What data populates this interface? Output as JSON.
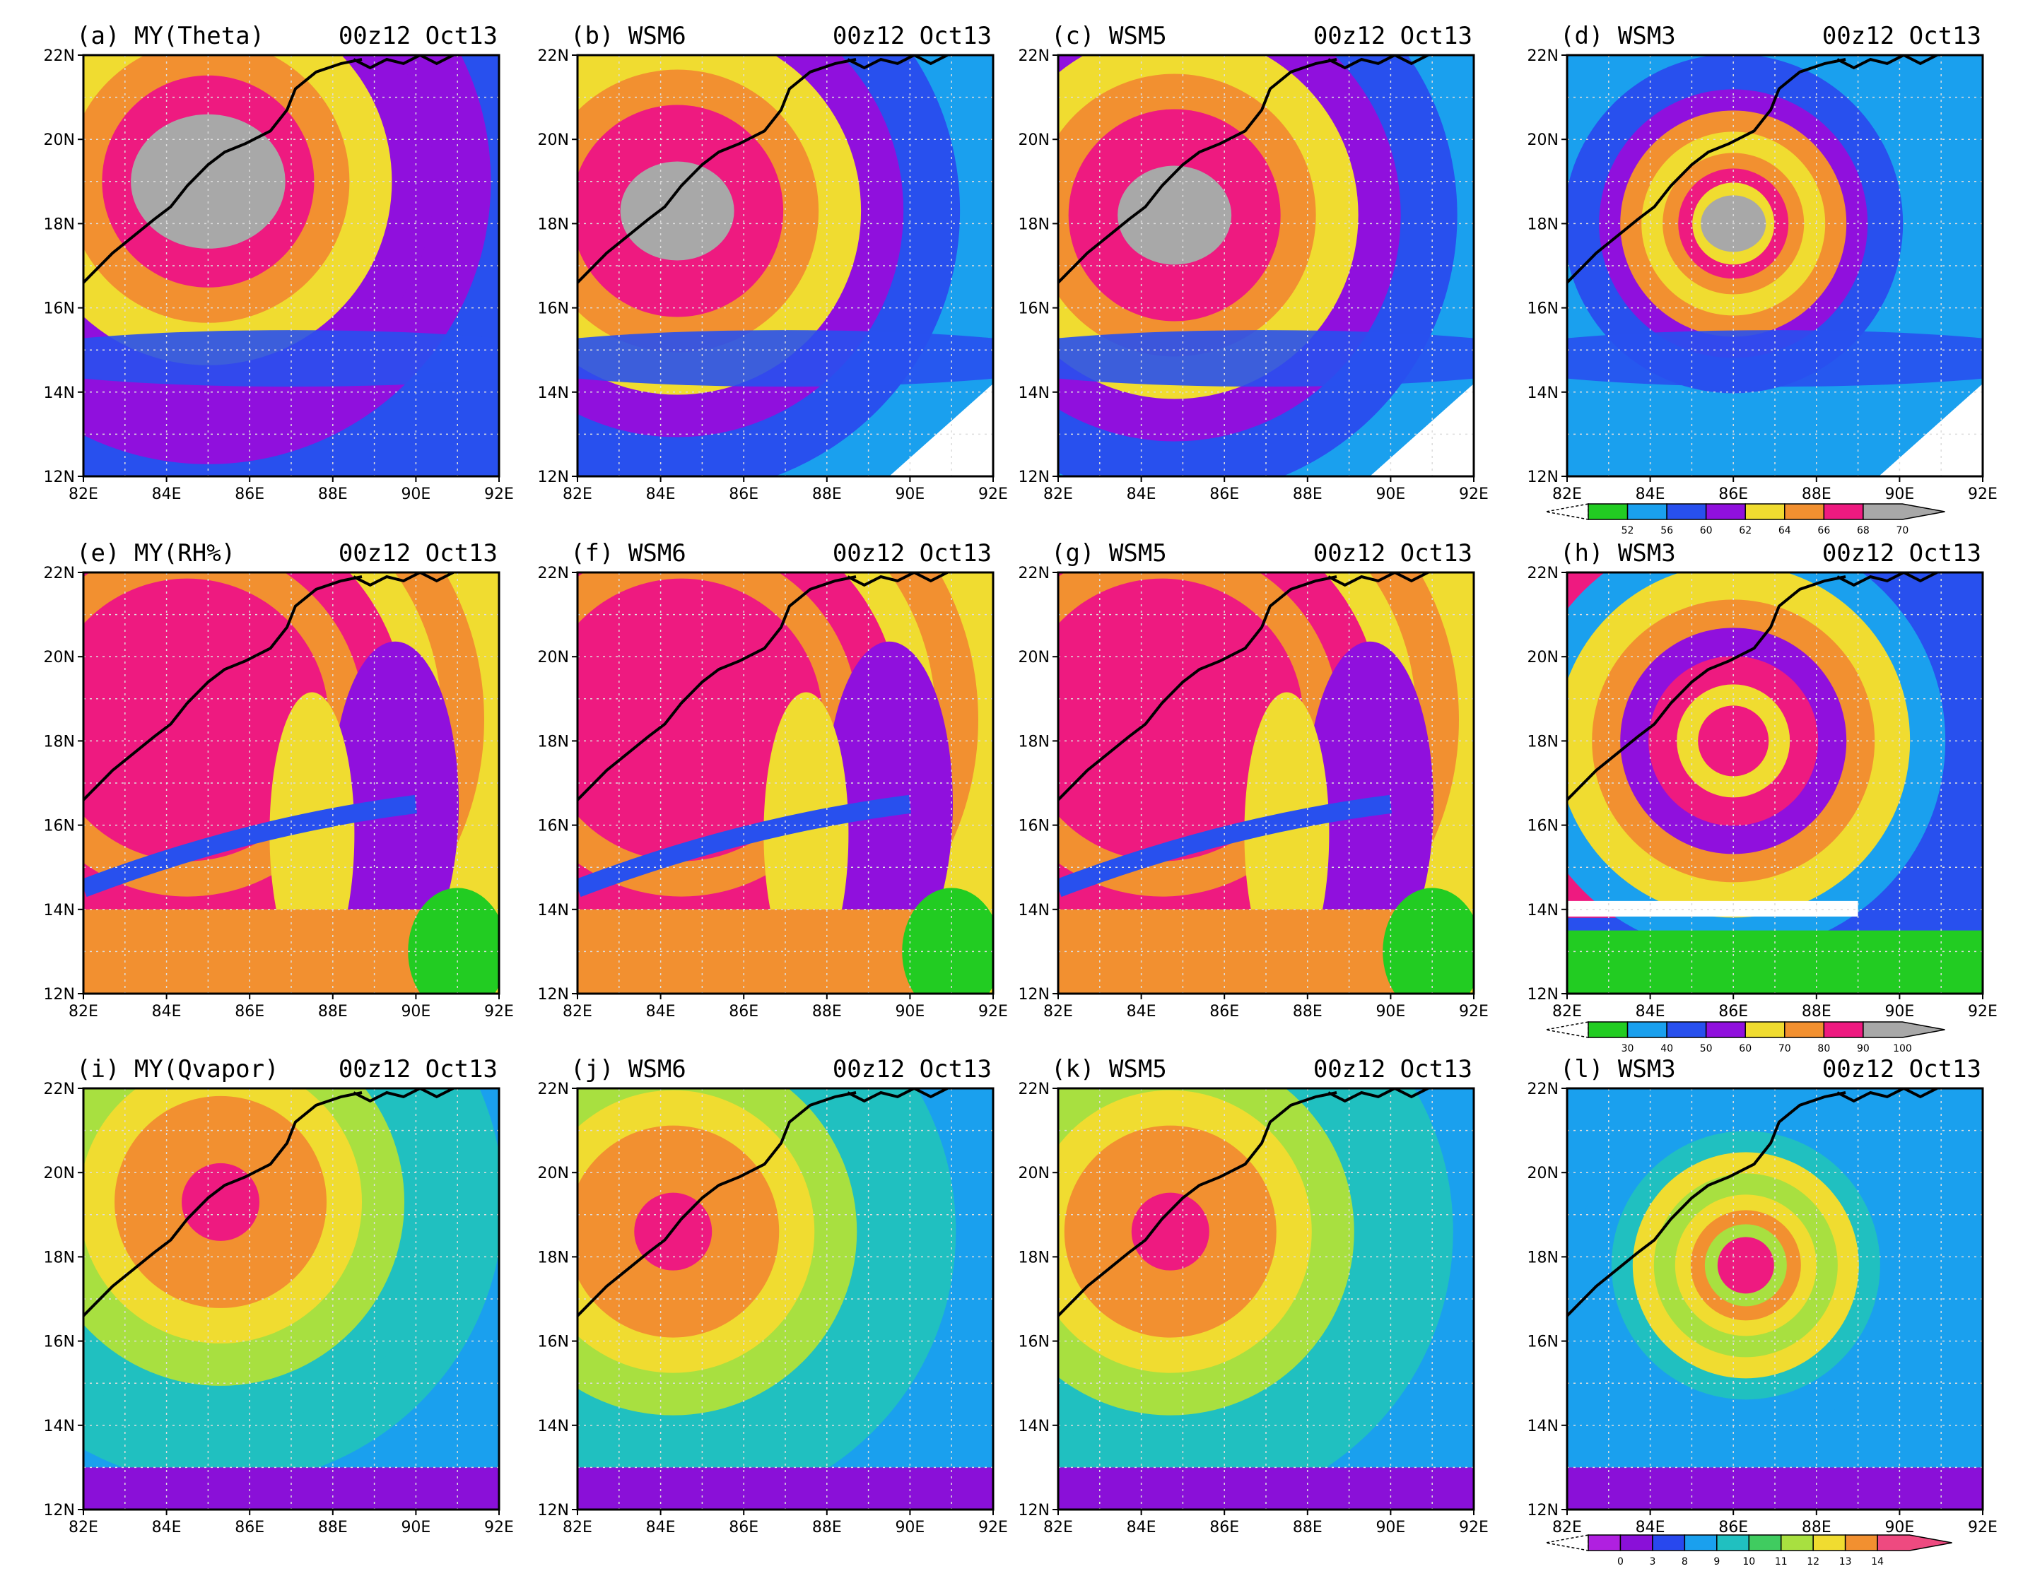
{
  "figure": {
    "rows": [
      {
        "variable": "theta",
        "panels": [
          {
            "title_left": "(a) MY(Theta)",
            "title_right": "00z12 Oct13",
            "center": [
              85.0,
              19.0
            ],
            "eye": "large",
            "outer": "broad",
            "bg": 2
          },
          {
            "title_left": "(b) WSM6",
            "title_right": "00z12 Oct13",
            "center": [
              84.4,
              18.3
            ],
            "eye": "medium",
            "outer": "broad",
            "bg": 1
          },
          {
            "title_left": "(c) WSM5",
            "title_right": "00z12 Oct13",
            "center": [
              84.8,
              18.2
            ],
            "eye": "medium",
            "outer": "broad",
            "bg": 1
          },
          {
            "title_left": "(d) WSM3",
            "title_right": "00z12 Oct13",
            "center": [
              86.0,
              18.0
            ],
            "eye": "small",
            "outer": "ring",
            "bg": 1
          }
        ],
        "colorbar": {
          "labels": [
            "52",
            "56",
            "60",
            "62",
            "64",
            "66",
            "68",
            "70"
          ],
          "colors": [
            "#22cc22",
            "#1aa0ee",
            "#2850ee",
            "#9010dd",
            "#f0dc30",
            "#f29030",
            "#ee1a80",
            "#a8a8a8"
          ]
        }
      },
      {
        "variable": "rh",
        "panels": [
          {
            "title_left": "(e) MY(RH%)",
            "title_right": "00z12 Oct13",
            "center": [
              84.5,
              18.5
            ],
            "eye": "none",
            "outer": "moist",
            "bg": 4
          },
          {
            "title_left": "(f) WSM6",
            "title_right": "00z12 Oct13",
            "center": [
              84.5,
              18.5
            ],
            "eye": "none",
            "outer": "moist",
            "bg": 4
          },
          {
            "title_left": "(g) WSM5",
            "title_right": "00z12 Oct13",
            "center": [
              84.5,
              18.5
            ],
            "eye": "none",
            "outer": "moist",
            "bg": 4
          },
          {
            "title_left": "(h) WSM3",
            "title_right": "00z12 Oct13",
            "center": [
              86.0,
              18.0
            ],
            "eye": "none",
            "outer": "spiral",
            "bg": 2
          }
        ],
        "colorbar": {
          "labels": [
            "30",
            "40",
            "50",
            "60",
            "70",
            "80",
            "90",
            "100"
          ],
          "colors": [
            "#22cc22",
            "#1aa0ee",
            "#2850ee",
            "#9010dd",
            "#f0dc30",
            "#f29030",
            "#ee1a80",
            "#a8a8a8"
          ]
        }
      },
      {
        "variable": "qvapor",
        "panels": [
          {
            "title_left": "(i) MY(Qvapor)",
            "title_right": "00z12 Oct13",
            "center": [
              85.3,
              19.3
            ],
            "eye": "peak",
            "outer": "broad",
            "bg": 2
          },
          {
            "title_left": "(j) WSM6",
            "title_right": "00z12 Oct13",
            "center": [
              84.3,
              18.6
            ],
            "eye": "peak",
            "outer": "broad",
            "bg": 2
          },
          {
            "title_left": "(k) WSM5",
            "title_right": "00z12 Oct13",
            "center": [
              84.7,
              18.6
            ],
            "eye": "peak",
            "outer": "broad",
            "bg": 2
          },
          {
            "title_left": "(l) WSM3",
            "title_right": "00z12 Oct13",
            "center": [
              86.3,
              17.8
            ],
            "eye": "small",
            "outer": "ring",
            "bg": 2
          }
        ],
        "colorbar": {
          "labels": [
            "0",
            "3",
            "8",
            "9",
            "10",
            "11",
            "12",
            "13",
            "14"
          ],
          "colors": [
            "#b020e0",
            "#8a10d8",
            "#2848ee",
            "#1aa0ee",
            "#20c0c0",
            "#40cc60",
            "#a8e040",
            "#f0dc30",
            "#f29030",
            "#ee4a80"
          ]
        }
      }
    ],
    "x_ticks": [
      "82E",
      "84E",
      "86E",
      "88E",
      "90E",
      "92E"
    ],
    "y_ticks": [
      "12N",
      "14N",
      "16N",
      "18N",
      "20N",
      "22N"
    ],
    "lon_range": [
      82,
      92
    ],
    "lat_range": [
      12,
      22
    ],
    "coastline_color": "#000000",
    "grid": true
  }
}
